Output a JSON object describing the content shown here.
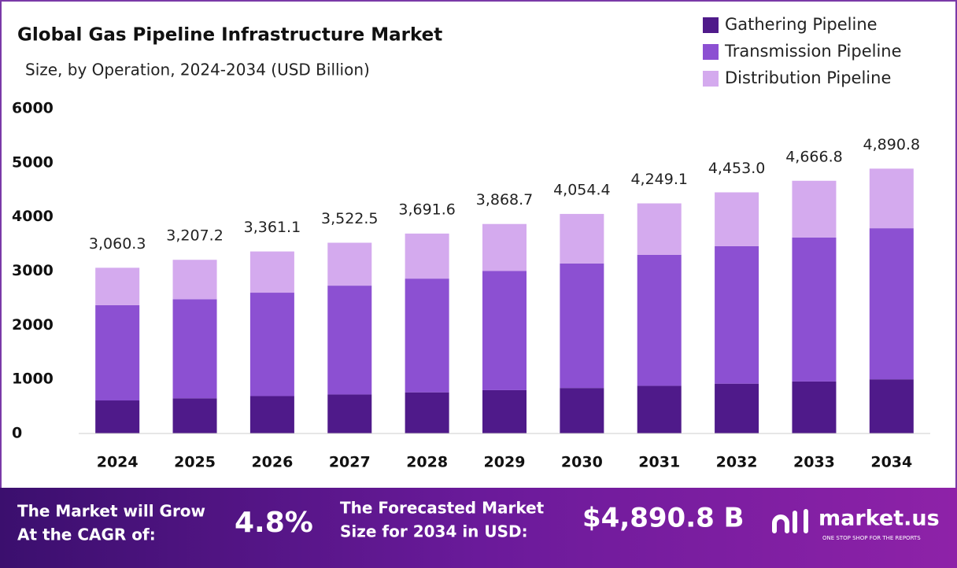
{
  "chart_data": {
    "type": "stacked_bar",
    "title": "Global Gas Pipeline Infrastructure Market",
    "subtitle": "Size, by Operation, 2024-2034 (USD Billion)",
    "categories": [
      "2024",
      "2025",
      "2026",
      "2027",
      "2028",
      "2029",
      "2030",
      "2031",
      "2032",
      "2033",
      "2034"
    ],
    "series": [
      {
        "name": "Gathering Pipeline",
        "color": "#4f1a8a",
        "values": [
          610,
          650,
          690,
          720,
          760,
          800,
          840,
          880,
          920,
          960,
          1000
        ]
      },
      {
        "name": "Transmission Pipeline",
        "color": "#8c50d2",
        "values": [
          1760,
          1830,
          1910,
          2010,
          2100,
          2200,
          2300,
          2420,
          2540,
          2660,
          2790
        ]
      },
      {
        "name": "Distribution Pipeline",
        "color": "#d4aaee",
        "values": [
          690.3,
          727.2,
          761.1,
          792.5,
          831.6,
          868.7,
          914.4,
          949.1,
          993,
          1046.8,
          1100.8
        ]
      }
    ],
    "totals": [
      3060.3,
      3207.2,
      3361.1,
      3522.5,
      3691.6,
      3868.7,
      4054.4,
      4249.1,
      4453.0,
      4666.8,
      4890.8
    ],
    "total_labels": [
      "3,060.3",
      "3,207.2",
      "3,361.1",
      "3,522.5",
      "3,691.6",
      "3,868.7",
      "4,054.4",
      "4,249.1",
      "4,453.0",
      "4,666.8",
      "4,890.8"
    ],
    "ylim": [
      0,
      6000
    ],
    "yticks": [
      0,
      1000,
      2000,
      3000,
      4000,
      5000,
      6000
    ],
    "legend": "top-right"
  },
  "footer": {
    "cagr_text": [
      "The Market will Grow",
      "At the CAGR of:"
    ],
    "cagr_value": "4.8%",
    "forecast_text": [
      "The Forecasted Market",
      "Size for 2034 in USD:"
    ],
    "forecast_value": "$4,890.8 B",
    "brand": "market.us",
    "tagline": "ONE STOP SHOP FOR THE REPORTS"
  }
}
